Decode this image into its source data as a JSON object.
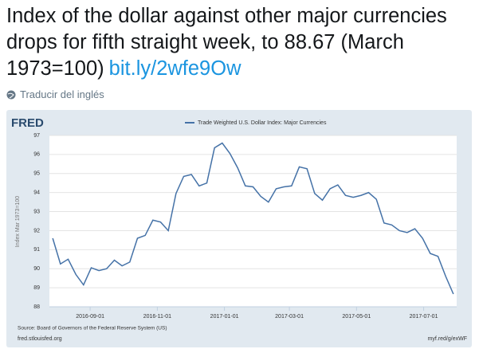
{
  "tweet": {
    "text": "Index of the dollar against other major currencies drops for fifth straight week, to 88.67 (March 1973=100)",
    "link": "bit.ly/2wfe9Ow",
    "translate": "Traducir del inglés"
  },
  "chart_data": {
    "type": "line",
    "logo": "FRED",
    "ylabel": "Index Mar 1973=100",
    "source": "Source: Board of Governors of the Federal Reserve System (US)",
    "site": "fred.stlouisfed.org",
    "short_url": "myf.red/g/exWF",
    "x": [
      "2016-07-29",
      "2016-08-05",
      "2016-08-12",
      "2016-08-19",
      "2016-08-26",
      "2016-09-02",
      "2016-09-09",
      "2016-09-16",
      "2016-09-23",
      "2016-09-30",
      "2016-10-07",
      "2016-10-14",
      "2016-10-21",
      "2016-10-28",
      "2016-11-04",
      "2016-11-11",
      "2016-11-18",
      "2016-11-25",
      "2016-12-02",
      "2016-12-09",
      "2016-12-16",
      "2016-12-23",
      "2016-12-30",
      "2017-01-06",
      "2017-01-13",
      "2017-01-20",
      "2017-01-27",
      "2017-02-03",
      "2017-02-10",
      "2017-02-17",
      "2017-02-24",
      "2017-03-03",
      "2017-03-10",
      "2017-03-17",
      "2017-03-24",
      "2017-03-31",
      "2017-04-07",
      "2017-04-14",
      "2017-04-21",
      "2017-04-28",
      "2017-05-05",
      "2017-05-12",
      "2017-05-19",
      "2017-05-26",
      "2017-06-02",
      "2017-06-09",
      "2017-06-16",
      "2017-06-23",
      "2017-06-30",
      "2017-07-07",
      "2017-07-14",
      "2017-07-21",
      "2017-07-28"
    ],
    "series": [
      {
        "name": "Trade Weighted U.S. Dollar Index: Major Currencies",
        "color": "#4572a7",
        "values": [
          91.6,
          90.25,
          90.5,
          89.7,
          89.15,
          90.05,
          89.9,
          90.0,
          90.45,
          90.15,
          90.35,
          91.6,
          91.75,
          92.55,
          92.45,
          92.0,
          93.95,
          94.85,
          94.95,
          94.35,
          94.5,
          96.35,
          96.6,
          96.05,
          95.3,
          94.35,
          94.3,
          93.8,
          93.5,
          94.2,
          94.3,
          94.35,
          95.35,
          95.25,
          93.95,
          93.6,
          94.2,
          94.4,
          93.85,
          93.75,
          93.85,
          94.0,
          93.65,
          92.4,
          92.3,
          92.0,
          91.9,
          92.1,
          91.6,
          90.8,
          90.65,
          89.6,
          88.67
        ]
      }
    ],
    "xlim": [
      "2016-07-26",
      "2017-07-31"
    ],
    "xticks": [
      "2016-09-01",
      "2016-11-01",
      "2017-01-01",
      "2017-03-01",
      "2017-05-01",
      "2017-07-01"
    ],
    "ylim": [
      88,
      97
    ],
    "yticks": [
      88,
      89,
      90,
      91,
      92,
      93,
      94,
      95,
      96,
      97
    ],
    "grid": true
  }
}
